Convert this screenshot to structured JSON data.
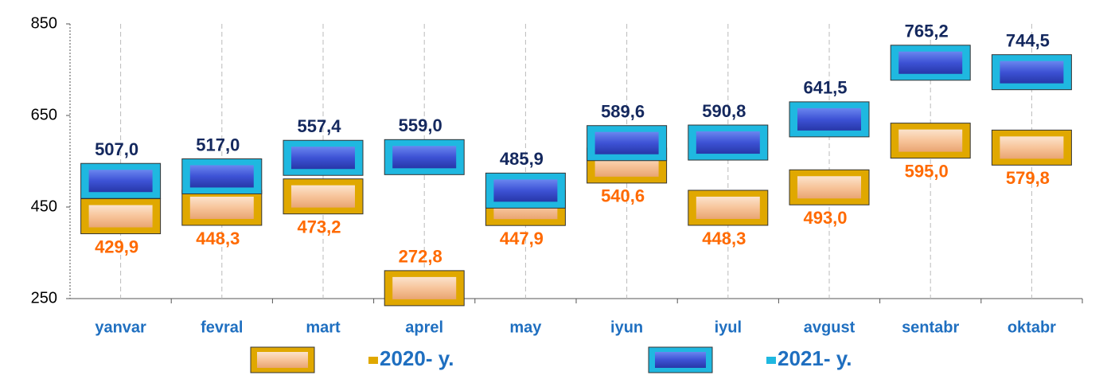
{
  "chart_data": {
    "type": "line",
    "categories": [
      "yanvar",
      "fevral",
      "mart",
      "aprel",
      "may",
      "iyun",
      "iyul",
      "avgust",
      "sentabr",
      "oktabr"
    ],
    "series": [
      {
        "name": "2020- y.",
        "color": "#f7c49a",
        "border_color": "#e0a800",
        "label_color": "#ff6a00",
        "values": [
          429.9,
          448.3,
          473.2,
          272.8,
          447.9,
          540.6,
          448.3,
          493.0,
          595.0,
          579.8
        ],
        "value_labels": [
          "429,9",
          "448,3",
          "473,2",
          "272,8",
          "447,9",
          "540,6",
          "448,3",
          "493,0",
          "595,0",
          "579,8"
        ]
      },
      {
        "name": "2021- y.",
        "color": "#3d52d5",
        "border_color": "#1fb8e0",
        "label_color": "#14285e",
        "values": [
          507.0,
          517.0,
          557.4,
          559.0,
          485.9,
          589.6,
          590.8,
          641.5,
          765.2,
          744.5
        ],
        "value_labels": [
          "507,0",
          "517,0",
          "557,4",
          "559,0",
          "485,9",
          "589,6",
          "590,8",
          "641,5",
          "765,2",
          "744,5"
        ]
      }
    ],
    "ylim": [
      250,
      850
    ],
    "yticks": [
      250,
      450,
      650,
      850
    ],
    "grid": true,
    "legend": "bottom"
  }
}
